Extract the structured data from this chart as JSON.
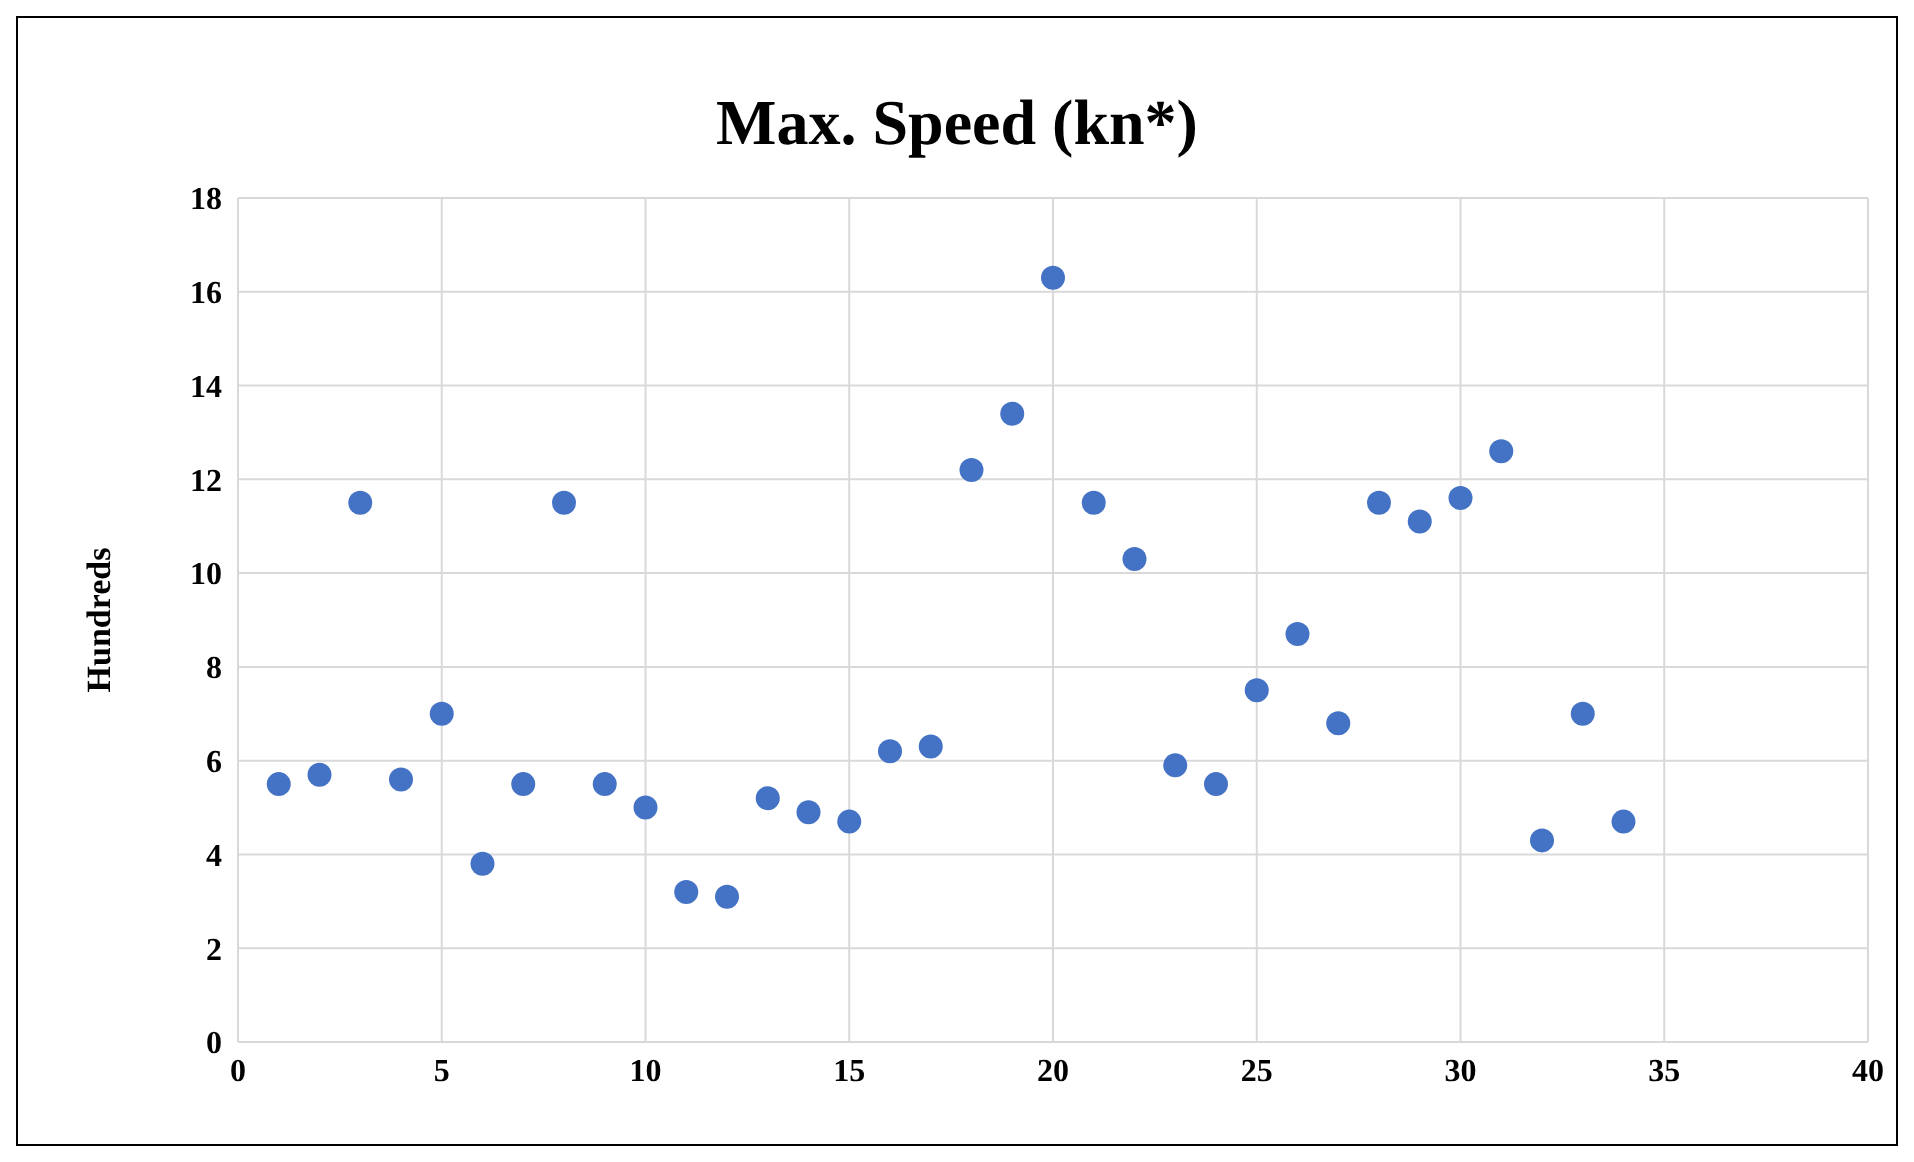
{
  "chart_data": {
    "type": "scatter",
    "title": "Max. Speed (kn*)",
    "ylabel": "Hundreds",
    "x": [
      1,
      2,
      3,
      4,
      5,
      6,
      7,
      8,
      9,
      10,
      11,
      12,
      13,
      14,
      15,
      16,
      17,
      18,
      19,
      20,
      21,
      22,
      23,
      24,
      25,
      26,
      27,
      28,
      29,
      30,
      31,
      32,
      33,
      34
    ],
    "series": [
      {
        "color": "#4472c4",
        "values": [
          5.5,
          5.7,
          11.5,
          5.6,
          7.0,
          3.8,
          5.5,
          11.5,
          5.5,
          5.0,
          3.2,
          3.1,
          5.2,
          4.9,
          4.7,
          6.2,
          6.3,
          12.2,
          13.4,
          16.3,
          11.5,
          10.3,
          5.9,
          5.5,
          7.5,
          8.7,
          6.8,
          11.5,
          11.1,
          11.6,
          12.6,
          4.3,
          7.0,
          4.7
        ]
      }
    ],
    "xlim": [
      0,
      40
    ],
    "xticks": [
      0,
      5,
      10,
      15,
      20,
      25,
      30,
      35,
      40
    ],
    "ylim": [
      0,
      18
    ],
    "yticks": [
      0,
      2,
      4,
      6,
      8,
      10,
      12,
      14,
      16,
      18
    ],
    "grid": true,
    "legend": false,
    "marker": "circle"
  }
}
